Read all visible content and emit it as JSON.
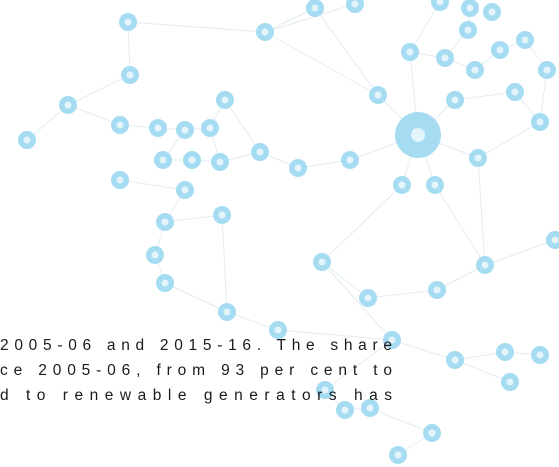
{
  "body": {
    "lines": [
      "2005-06 and 2015-16. The share",
      "ce 2005-06, from 93 per cent to",
      "d to renewable generators has"
    ]
  }
}
